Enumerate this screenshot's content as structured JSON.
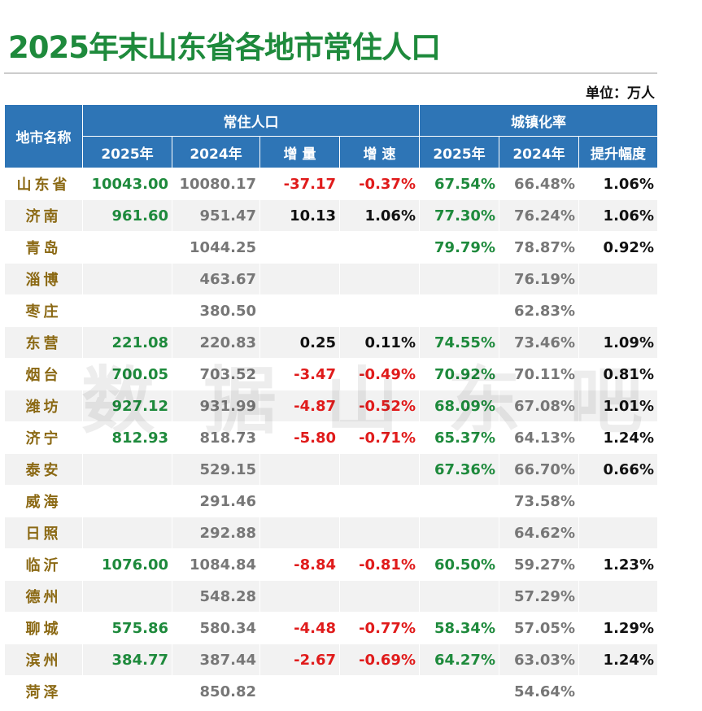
{
  "header": {
    "title": "2025年末山东省各地市常住人口",
    "unit": "单位：万人",
    "watermark": "数据山东吧"
  },
  "table": {
    "name_header": "地市名称",
    "groups": [
      "常住人口",
      "城镇化率"
    ],
    "columns": [
      "2025年",
      "2024年",
      "增 量",
      "增 速",
      "2025年",
      "2024年",
      "提升幅度"
    ],
    "rows": [
      [
        "山东省",
        "10043.00",
        "10080.17",
        "-37.17",
        "-0.37%",
        "67.54%",
        "66.48%",
        "1.06%"
      ],
      [
        "济南",
        "961.60",
        "951.47",
        "10.13",
        "1.06%",
        "77.30%",
        "76.24%",
        "1.06%"
      ],
      [
        "青岛",
        null,
        "1044.25",
        null,
        null,
        "79.79%",
        "78.87%",
        "0.92%"
      ],
      [
        "淄博",
        null,
        "463.67",
        null,
        null,
        null,
        "76.19%",
        null
      ],
      [
        "枣庄",
        null,
        "380.50",
        null,
        null,
        null,
        "62.83%",
        null
      ],
      [
        "东营",
        "221.08",
        "220.83",
        "0.25",
        "0.11%",
        "74.55%",
        "73.46%",
        "1.09%"
      ],
      [
        "烟台",
        "700.05",
        "703.52",
        "-3.47",
        "-0.49%",
        "70.92%",
        "70.11%",
        "0.81%"
      ],
      [
        "潍坊",
        "927.12",
        "931.99",
        "-4.87",
        "-0.52%",
        "68.09%",
        "67.08%",
        "1.01%"
      ],
      [
        "济宁",
        "812.93",
        "818.73",
        "-5.80",
        "-0.71%",
        "65.37%",
        "64.13%",
        "1.24%"
      ],
      [
        "泰安",
        null,
        "529.15",
        null,
        null,
        "67.36%",
        "66.70%",
        "0.66%"
      ],
      [
        "威海",
        null,
        "291.46",
        null,
        null,
        null,
        "73.58%",
        null
      ],
      [
        "日照",
        null,
        "292.88",
        null,
        null,
        null,
        "64.62%",
        null
      ],
      [
        "临沂",
        "1076.00",
        "1084.84",
        "-8.84",
        "-0.81%",
        "60.50%",
        "59.27%",
        "1.23%"
      ],
      [
        "德州",
        null,
        "548.28",
        null,
        null,
        null,
        "57.29%",
        null
      ],
      [
        "聊城",
        "575.86",
        "580.34",
        "-4.48",
        "-0.77%",
        "58.34%",
        "57.05%",
        "1.29%"
      ],
      [
        "滨州",
        "384.77",
        "387.44",
        "-2.67",
        "-0.69%",
        "64.27%",
        "63.03%",
        "1.24%"
      ],
      [
        "菏泽",
        null,
        "850.82",
        null,
        null,
        null,
        "54.64%",
        null
      ]
    ]
  }
}
